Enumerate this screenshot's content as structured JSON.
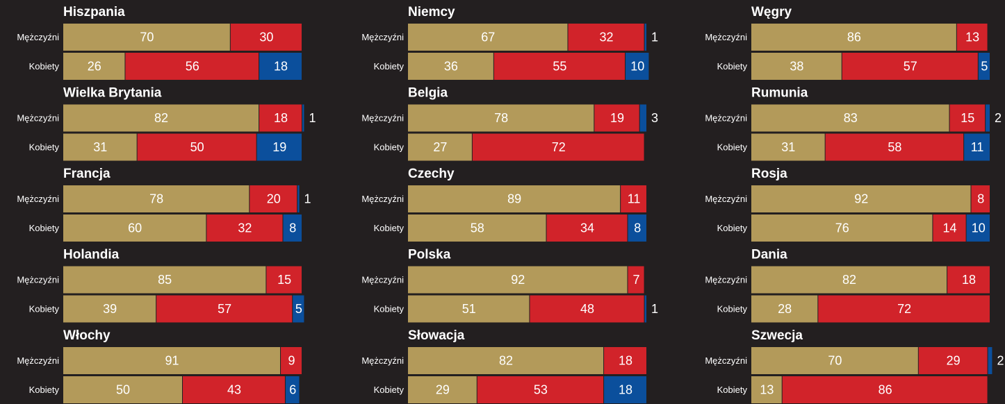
{
  "chart_data": [
    {
      "type": "bar",
      "stacked": true,
      "orientation": "horizontal",
      "title": "Hiszpania",
      "categories": [
        "Mężczyźni",
        "Kobiety"
      ],
      "xlim": [
        0,
        100
      ],
      "series": [
        {
          "color": "#b39a5a",
          "values": [
            70,
            26
          ]
        },
        {
          "color": "#d1232a",
          "values": [
            30,
            56
          ]
        },
        {
          "color": "#0b4f9c",
          "values": [
            null,
            18
          ]
        }
      ]
    },
    {
      "type": "bar",
      "stacked": true,
      "orientation": "horizontal",
      "title": "Niemcy",
      "categories": [
        "Mężczyźni",
        "Kobiety"
      ],
      "xlim": [
        0,
        100
      ],
      "series": [
        {
          "color": "#b39a5a",
          "values": [
            67,
            36
          ]
        },
        {
          "color": "#d1232a",
          "values": [
            32,
            55
          ]
        },
        {
          "color": "#0b4f9c",
          "values": [
            1,
            10
          ]
        }
      ]
    },
    {
      "type": "bar",
      "stacked": true,
      "orientation": "horizontal",
      "title": "Węgry",
      "categories": [
        "Mężczyźni",
        "Kobiety"
      ],
      "xlim": [
        0,
        100
      ],
      "series": [
        {
          "color": "#b39a5a",
          "values": [
            86,
            38
          ]
        },
        {
          "color": "#d1232a",
          "values": [
            13,
            57
          ]
        },
        {
          "color": "#0b4f9c",
          "values": [
            null,
            5
          ]
        }
      ]
    },
    {
      "type": "bar",
      "stacked": true,
      "orientation": "horizontal",
      "title": "Wielka Brytania",
      "categories": [
        "Mężczyźni",
        "Kobiety"
      ],
      "xlim": [
        0,
        100
      ],
      "series": [
        {
          "color": "#b39a5a",
          "values": [
            82,
            31
          ]
        },
        {
          "color": "#d1232a",
          "values": [
            18,
            50
          ]
        },
        {
          "color": "#0b4f9c",
          "values": [
            1,
            19
          ]
        }
      ]
    },
    {
      "type": "bar",
      "stacked": true,
      "orientation": "horizontal",
      "title": "Belgia",
      "categories": [
        "Mężczyźni",
        "Kobiety"
      ],
      "xlim": [
        0,
        100
      ],
      "series": [
        {
          "color": "#b39a5a",
          "values": [
            78,
            27
          ]
        },
        {
          "color": "#d1232a",
          "values": [
            19,
            72
          ]
        },
        {
          "color": "#0b4f9c",
          "values": [
            3,
            null
          ]
        }
      ]
    },
    {
      "type": "bar",
      "stacked": true,
      "orientation": "horizontal",
      "title": "Rumunia",
      "categories": [
        "Mężczyźni",
        "Kobiety"
      ],
      "xlim": [
        0,
        100
      ],
      "series": [
        {
          "color": "#b39a5a",
          "values": [
            83,
            31
          ]
        },
        {
          "color": "#d1232a",
          "values": [
            15,
            58
          ]
        },
        {
          "color": "#0b4f9c",
          "values": [
            2,
            11
          ]
        }
      ]
    },
    {
      "type": "bar",
      "stacked": true,
      "orientation": "horizontal",
      "title": "Francja",
      "categories": [
        "Mężczyźni",
        "Kobiety"
      ],
      "xlim": [
        0,
        100
      ],
      "series": [
        {
          "color": "#b39a5a",
          "values": [
            78,
            60
          ]
        },
        {
          "color": "#d1232a",
          "values": [
            20,
            32
          ]
        },
        {
          "color": "#0b4f9c",
          "values": [
            1,
            8
          ]
        }
      ]
    },
    {
      "type": "bar",
      "stacked": true,
      "orientation": "horizontal",
      "title": "Czechy",
      "categories": [
        "Mężczyźni",
        "Kobiety"
      ],
      "xlim": [
        0,
        100
      ],
      "series": [
        {
          "color": "#b39a5a",
          "values": [
            89,
            58
          ]
        },
        {
          "color": "#d1232a",
          "values": [
            11,
            34
          ]
        },
        {
          "color": "#0b4f9c",
          "values": [
            null,
            8
          ]
        }
      ]
    },
    {
      "type": "bar",
      "stacked": true,
      "orientation": "horizontal",
      "title": "Rosja",
      "categories": [
        "Mężczyźni",
        "Kobiety"
      ],
      "xlim": [
        0,
        100
      ],
      "series": [
        {
          "color": "#b39a5a",
          "values": [
            92,
            76
          ]
        },
        {
          "color": "#d1232a",
          "values": [
            8,
            14
          ]
        },
        {
          "color": "#0b4f9c",
          "values": [
            null,
            10
          ]
        }
      ]
    },
    {
      "type": "bar",
      "stacked": true,
      "orientation": "horizontal",
      "title": "Holandia",
      "categories": [
        "Mężczyźni",
        "Kobiety"
      ],
      "xlim": [
        0,
        100
      ],
      "series": [
        {
          "color": "#b39a5a",
          "values": [
            85,
            39
          ]
        },
        {
          "color": "#d1232a",
          "values": [
            15,
            57
          ]
        },
        {
          "color": "#0b4f9c",
          "values": [
            null,
            5
          ]
        }
      ]
    },
    {
      "type": "bar",
      "stacked": true,
      "orientation": "horizontal",
      "title": "Polska",
      "categories": [
        "Mężczyźni",
        "Kobiety"
      ],
      "xlim": [
        0,
        100
      ],
      "series": [
        {
          "color": "#b39a5a",
          "values": [
            92,
            51
          ]
        },
        {
          "color": "#d1232a",
          "values": [
            7,
            48
          ]
        },
        {
          "color": "#0b4f9c",
          "values": [
            null,
            1
          ]
        }
      ]
    },
    {
      "type": "bar",
      "stacked": true,
      "orientation": "horizontal",
      "title": "Dania",
      "categories": [
        "Mężczyźni",
        "Kobiety"
      ],
      "xlim": [
        0,
        100
      ],
      "series": [
        {
          "color": "#b39a5a",
          "values": [
            82,
            28
          ]
        },
        {
          "color": "#d1232a",
          "values": [
            18,
            72
          ]
        },
        {
          "color": "#0b4f9c",
          "values": [
            null,
            null
          ]
        }
      ]
    },
    {
      "type": "bar",
      "stacked": true,
      "orientation": "horizontal",
      "title": "Włochy",
      "categories": [
        "Mężczyźni",
        "Kobiety"
      ],
      "xlim": [
        0,
        100
      ],
      "series": [
        {
          "color": "#b39a5a",
          "values": [
            91,
            50
          ]
        },
        {
          "color": "#d1232a",
          "values": [
            9,
            43
          ]
        },
        {
          "color": "#0b4f9c",
          "values": [
            null,
            6
          ]
        }
      ]
    },
    {
      "type": "bar",
      "stacked": true,
      "orientation": "horizontal",
      "title": "Słowacja",
      "categories": [
        "Mężczyźni",
        "Kobiety"
      ],
      "xlim": [
        0,
        100
      ],
      "series": [
        {
          "color": "#b39a5a",
          "values": [
            82,
            29
          ]
        },
        {
          "color": "#d1232a",
          "values": [
            18,
            53
          ]
        },
        {
          "color": "#0b4f9c",
          "values": [
            null,
            18
          ]
        }
      ]
    },
    {
      "type": "bar",
      "stacked": true,
      "orientation": "horizontal",
      "title": "Szwecja",
      "categories": [
        "Mężczyźni",
        "Kobiety"
      ],
      "xlim": [
        0,
        100
      ],
      "series": [
        {
          "color": "#b39a5a",
          "values": [
            70,
            13
          ]
        },
        {
          "color": "#d1232a",
          "values": [
            29,
            86
          ]
        },
        {
          "color": "#0b4f9c",
          "values": [
            2,
            null
          ]
        }
      ]
    }
  ]
}
